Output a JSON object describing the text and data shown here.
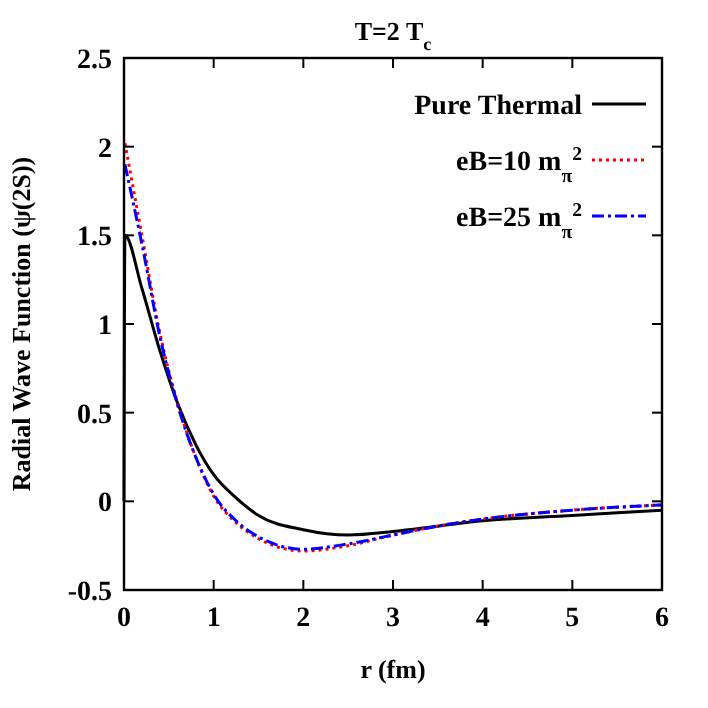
{
  "chart_data": {
    "type": "line",
    "title": "T=2 T$_{c}$",
    "xlabel": "r (fm)",
    "ylabel": "Radial Wave Function (ψ(2S))",
    "xlim": [
      0,
      6
    ],
    "ylim": [
      -0.5,
      2.5
    ],
    "xticks": [
      0,
      1,
      2,
      3,
      4,
      5,
      6
    ],
    "yticks": [
      -0.5,
      0,
      0.5,
      1,
      1.5,
      2,
      2.5
    ],
    "grid": false,
    "legend": "top right",
    "marker": "none",
    "series": [
      {
        "name": "Pure Thermal",
        "color": "#000000",
        "line_style": "solid",
        "x": [
          0,
          0.01,
          0.2,
          0.4,
          0.6,
          0.8,
          1,
          1.25,
          1.5,
          2,
          2.5,
          3,
          3.5,
          4,
          5,
          6
        ],
        "values": [
          0,
          1.5,
          1.2,
          0.85,
          0.55,
          0.32,
          0.15,
          0.02,
          -0.08,
          -0.16,
          -0.19,
          -0.17,
          -0.14,
          -0.11,
          -0.08,
          -0.05
        ]
      },
      {
        "name": "eB=10 m$_{π}$$^{2}$",
        "color": "#ff0000",
        "line_style": "dotted",
        "x": [
          0.01,
          0.2,
          0.4,
          0.6,
          0.8,
          1,
          1.25,
          1.5,
          2,
          2.5,
          3,
          3.5,
          4,
          5,
          6
        ],
        "values": [
          2.02,
          1.5,
          0.95,
          0.55,
          0.25,
          0.03,
          -0.12,
          -0.21,
          -0.28,
          -0.25,
          -0.19,
          -0.14,
          -0.1,
          -0.05,
          -0.02
        ]
      },
      {
        "name": "eB=25 m$_{π}$$^{2}$",
        "color": "#0000ff",
        "line_style": "dashdot",
        "x": [
          0.01,
          0.2,
          0.4,
          0.6,
          0.8,
          1,
          1.25,
          1.5,
          2,
          2.5,
          3,
          3.5,
          4,
          5,
          6
        ],
        "values": [
          1.9,
          1.45,
          0.93,
          0.54,
          0.25,
          0.04,
          -0.11,
          -0.2,
          -0.27,
          -0.24,
          -0.19,
          -0.14,
          -0.1,
          -0.05,
          -0.02
        ]
      }
    ]
  }
}
